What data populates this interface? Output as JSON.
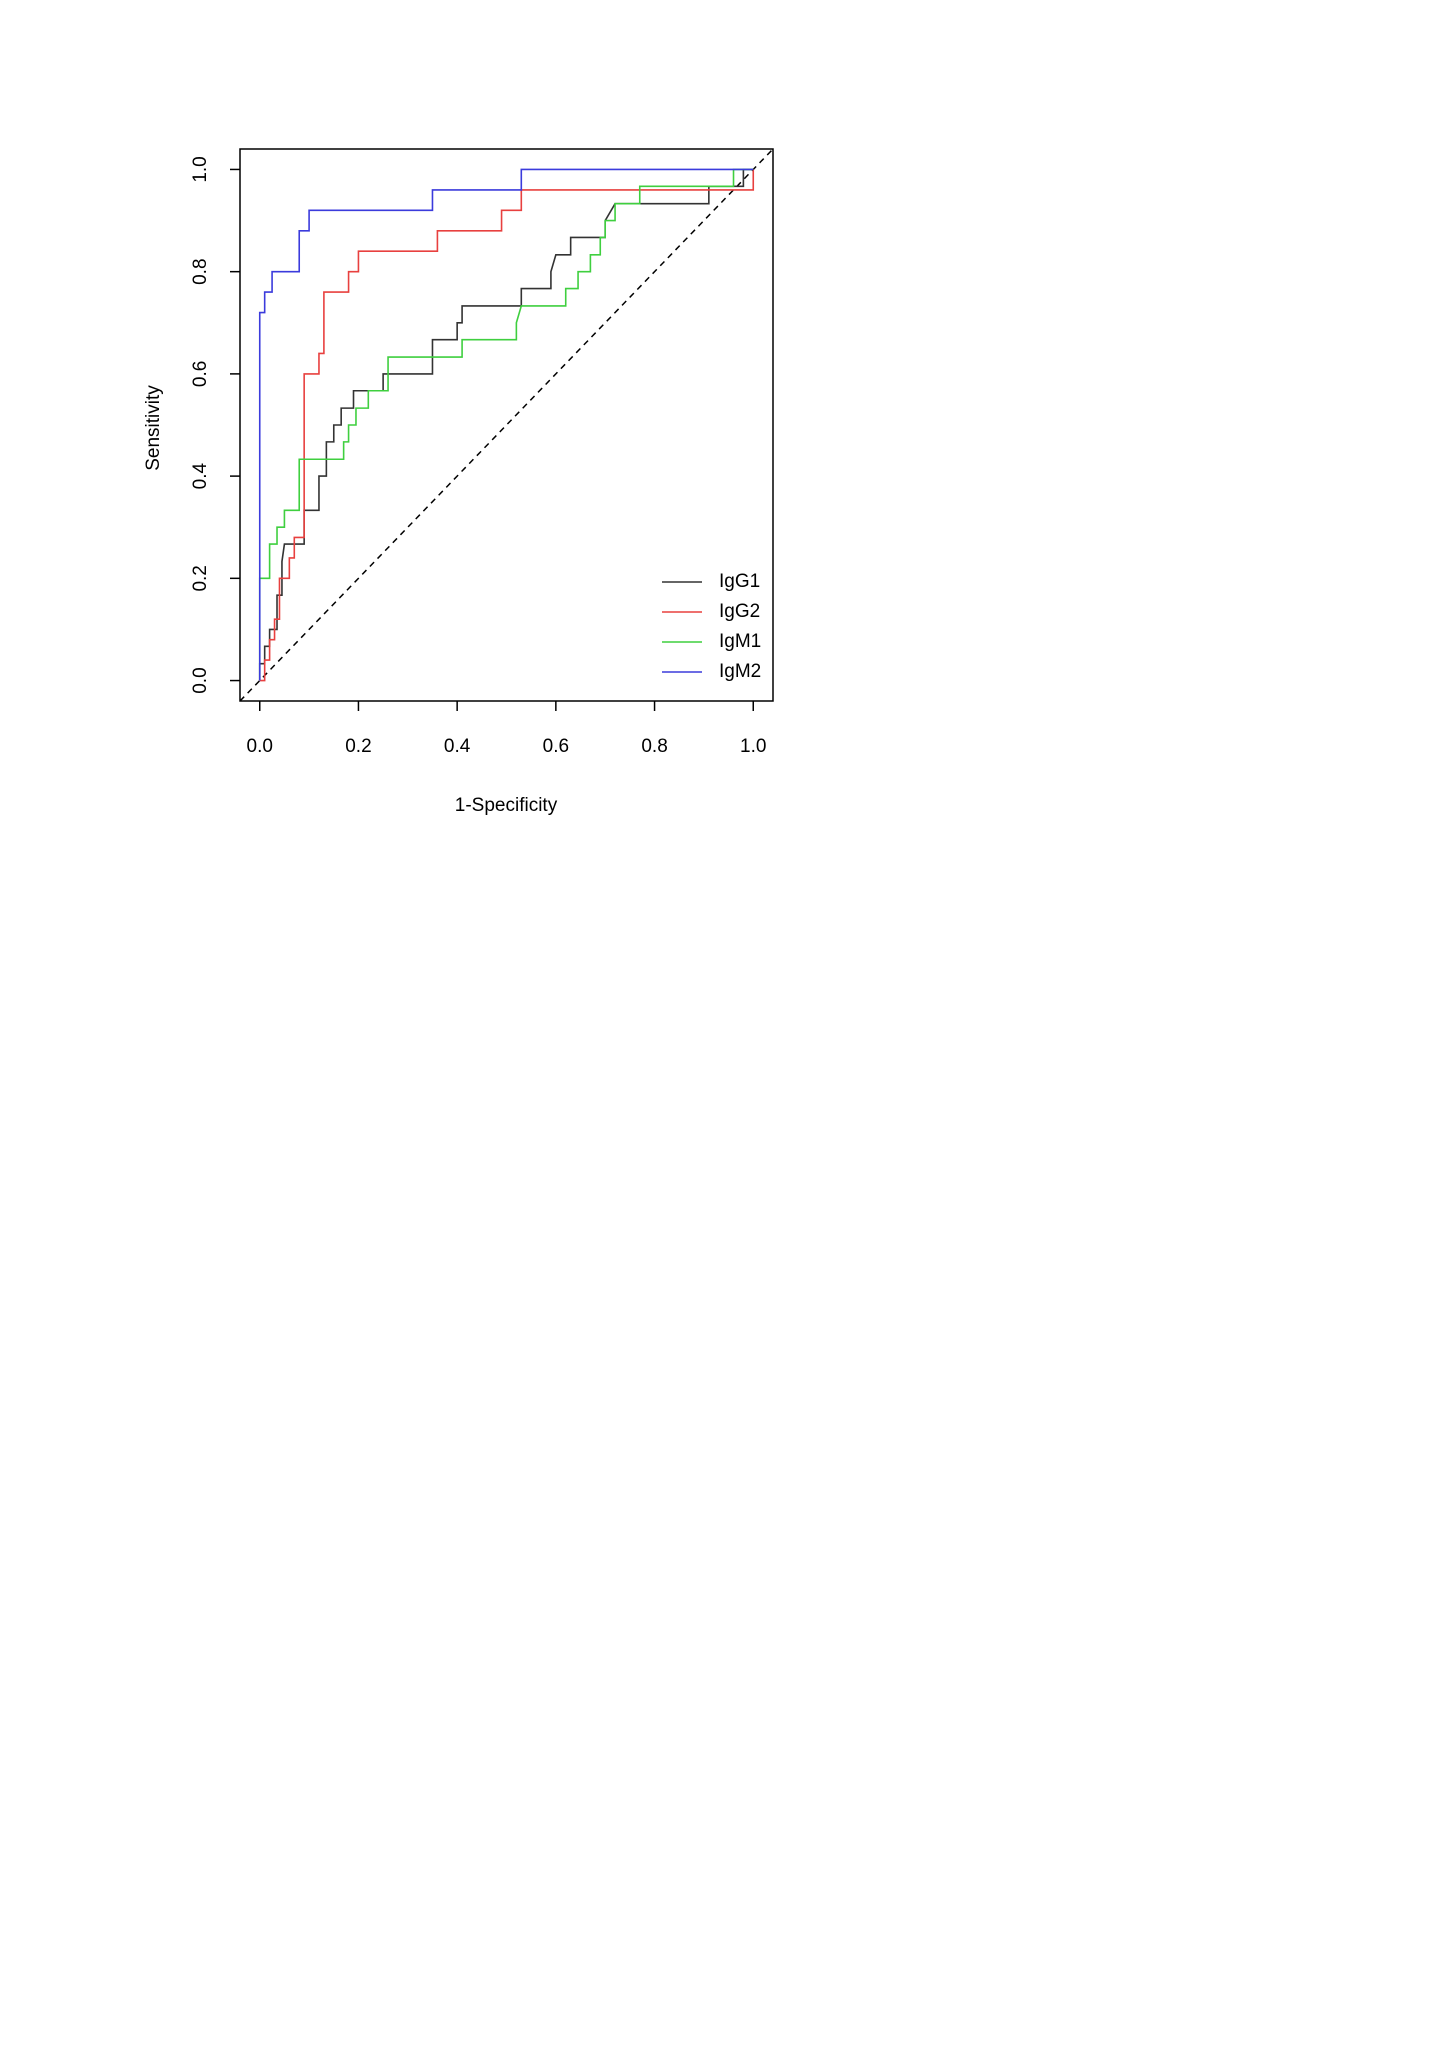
{
  "chart_data": {
    "type": "line",
    "x_label": "1-Specificity",
    "y_label": "Sensitivity",
    "xlim": [
      -0.04,
      1.04
    ],
    "ylim": [
      -0.04,
      1.04
    ],
    "xticks": [
      {
        "value": 0,
        "label": "0.0"
      },
      0.2,
      0.4,
      0.6,
      0.8,
      {
        "value": 1,
        "label": "1.0"
      }
    ],
    "yticks": [
      {
        "value": 0,
        "label": "0.0"
      },
      0.2,
      0.4,
      0.6,
      0.8,
      {
        "value": 1,
        "label": "1.0"
      }
    ],
    "legend": "bottom-right",
    "series": [
      {
        "name": "IgG1",
        "color": "#333333",
        "x": [
          0,
          0,
          0.01,
          0.01,
          0.02,
          0.02,
          0.035,
          0.035,
          0.045,
          0.045,
          0.05,
          0.09,
          0.09,
          0.12,
          0.12,
          0.135,
          0.135,
          0.15,
          0.15,
          0.165,
          0.165,
          0.19,
          0.19,
          0.25,
          0.25,
          0.35,
          0.35,
          0.4,
          0.4,
          0.41,
          0.41,
          0.53,
          0.53,
          0.59,
          0.59,
          0.6,
          0.63,
          0.63,
          0.7,
          0.7,
          0.72,
          0.91,
          0.91,
          0.98,
          0.98,
          1
        ],
        "values": [
          0,
          0.033,
          0.033,
          0.067,
          0.067,
          0.1,
          0.1,
          0.167,
          0.167,
          0.233,
          0.267,
          0.267,
          0.333,
          0.333,
          0.4,
          0.4,
          0.467,
          0.467,
          0.5,
          0.5,
          0.533,
          0.533,
          0.567,
          0.567,
          0.6,
          0.6,
          0.667,
          0.667,
          0.7,
          0.7,
          0.733,
          0.733,
          0.767,
          0.767,
          0.8,
          0.833,
          0.833,
          0.867,
          0.867,
          0.9,
          0.933,
          0.933,
          0.967,
          0.967,
          1,
          1
        ]
      },
      {
        "name": "IgG2",
        "color": "#e8403f",
        "x": [
          0,
          0.01,
          0.01,
          0.02,
          0.02,
          0.03,
          0.03,
          0.04,
          0.04,
          0.06,
          0.06,
          0.07,
          0.07,
          0.09,
          0.09,
          0.12,
          0.12,
          0.13,
          0.13,
          0.18,
          0.18,
          0.2,
          0.2,
          0.36,
          0.36,
          0.49,
          0.49,
          0.53,
          0.53,
          1,
          1
        ],
        "values": [
          0,
          0,
          0.04,
          0.04,
          0.08,
          0.08,
          0.12,
          0.12,
          0.2,
          0.2,
          0.24,
          0.24,
          0.28,
          0.28,
          0.6,
          0.6,
          0.64,
          0.64,
          0.76,
          0.76,
          0.8,
          0.8,
          0.84,
          0.84,
          0.88,
          0.88,
          0.92,
          0.92,
          0.96,
          0.96,
          1
        ]
      },
      {
        "name": "IgM1",
        "color": "#3fcf3f",
        "x": [
          0,
          0,
          0.02,
          0.02,
          0.035,
          0.035,
          0.05,
          0.05,
          0.08,
          0.08,
          0.17,
          0.17,
          0.18,
          0.18,
          0.195,
          0.195,
          0.22,
          0.22,
          0.26,
          0.26,
          0.41,
          0.41,
          0.52,
          0.52,
          0.53,
          0.62,
          0.62,
          0.645,
          0.645,
          0.67,
          0.67,
          0.69,
          0.69,
          0.7,
          0.7,
          0.72,
          0.72,
          0.77,
          0.77,
          0.96,
          0.96,
          1
        ],
        "values": [
          0,
          0.2,
          0.2,
          0.267,
          0.267,
          0.3,
          0.3,
          0.333,
          0.333,
          0.433,
          0.433,
          0.467,
          0.467,
          0.5,
          0.5,
          0.533,
          0.533,
          0.567,
          0.567,
          0.633,
          0.633,
          0.667,
          0.667,
          0.7,
          0.733,
          0.733,
          0.767,
          0.767,
          0.8,
          0.8,
          0.833,
          0.833,
          0.867,
          0.867,
          0.9,
          0.9,
          0.933,
          0.933,
          0.967,
          0.967,
          1,
          1
        ]
      },
      {
        "name": "IgM2",
        "color": "#3b3bdc",
        "x": [
          0,
          0,
          0.01,
          0.01,
          0.025,
          0.025,
          0.08,
          0.08,
          0.1,
          0.1,
          0.35,
          0.35,
          0.53,
          0.53,
          1
        ],
        "values": [
          0,
          0.72,
          0.72,
          0.76,
          0.76,
          0.8,
          0.8,
          0.88,
          0.88,
          0.92,
          0.92,
          0.96,
          0.96,
          1,
          1
        ]
      }
    ]
  }
}
